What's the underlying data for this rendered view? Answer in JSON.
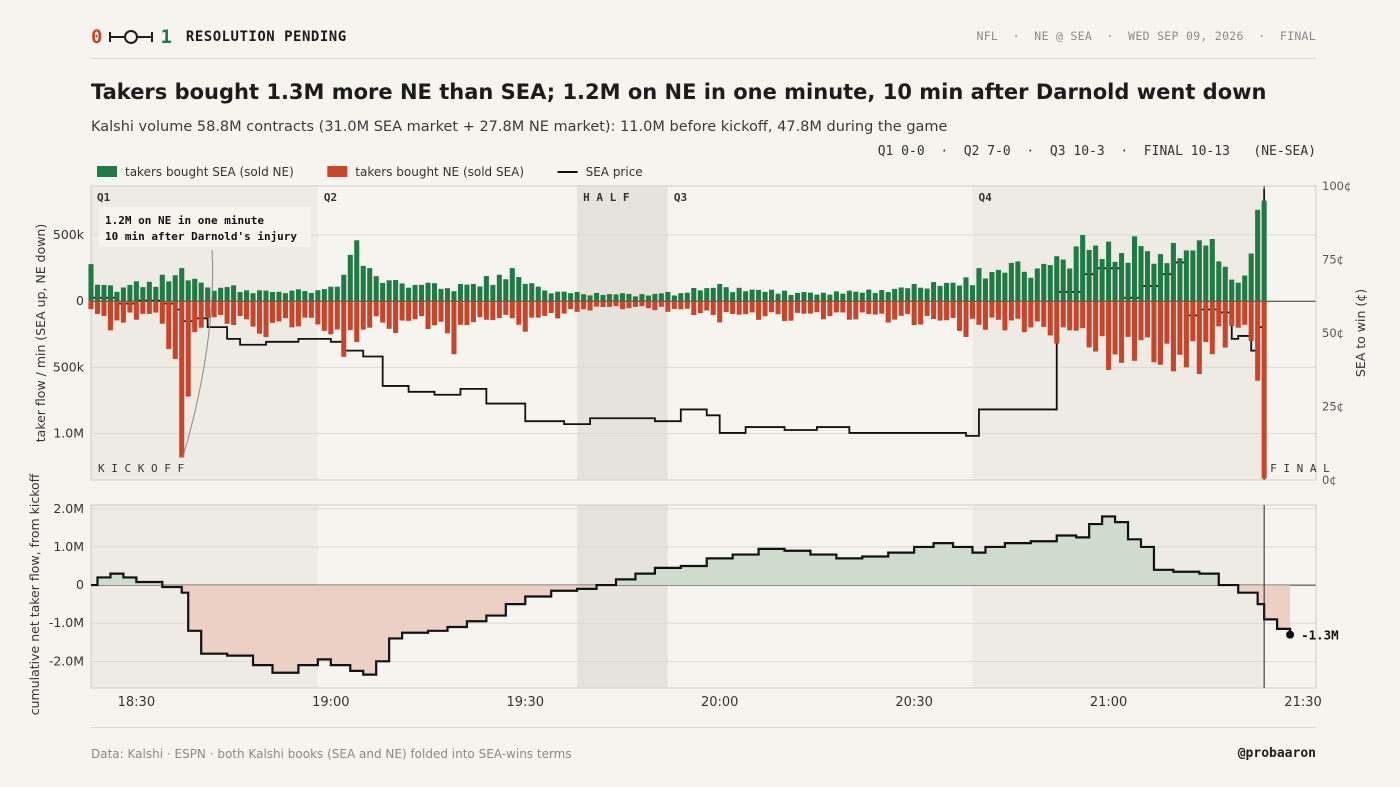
{
  "header": {
    "brand_zero": "0",
    "brand_one": "1",
    "status": "RESOLUTION PENDING",
    "meta": "NFL  ·  NE @ SEA  ·  WED SEP 09, 2026  ·  FINAL"
  },
  "title": "Takers bought 1.3M more NE than SEA; 1.2M on NE in one minute, 10 min after Darnold went down",
  "subtitle": "Kalshi volume 58.8M contracts (31.0M SEA market  +  27.8M NE market): 11.0M before kickoff, 47.8M during the game",
  "score_line": "Q1 0-0  ·  Q2 7-0  ·  Q3 10-3  ·  FINAL 10-13   (NE-SEA)",
  "colors": {
    "sea": "#1f7a45",
    "ne": "#c8452b",
    "price": "#111111",
    "pos_fill": "#cfdccd",
    "neg_fill": "#ecd0c6",
    "quarter_shade": "#eeebe4",
    "half_shade": "#e6e3dc"
  },
  "footer": {
    "source": "Data: Kalshi  ·  ESPN  ·  both Kalshi books (SEA and NE) folded into SEA-wins terms",
    "handle": "@probaaron"
  },
  "chart_data": [
    {
      "type": "bar",
      "legend": [
        "takers bought SEA (sold NE)",
        "takers bought NE (sold SEA)",
        "SEA price"
      ],
      "ylabel": "taker flow / min  (SEA up, NE down)",
      "y2label": "SEA to win (¢)",
      "y_ticks": [
        "500k",
        "0",
        "500k",
        "1.0M"
      ],
      "y_tick_values": [
        500000,
        0,
        -500000,
        -1000000
      ],
      "ylim": [
        -1350000,
        870000
      ],
      "y2_ticks": [
        "100¢",
        "75¢",
        "50¢",
        "25¢",
        "0¢"
      ],
      "y2_tick_values": [
        100,
        75,
        50,
        25,
        0
      ],
      "y2lim": [
        0,
        100
      ],
      "x_range": [
        "18:23",
        "21:32"
      ],
      "periods": [
        {
          "label": "Q1",
          "start": "18:23",
          "end": "18:58"
        },
        {
          "label": "Q2",
          "start": "18:58",
          "end": "19:38"
        },
        {
          "label": "H A L F",
          "start": "19:38",
          "end": "19:52"
        },
        {
          "label": "Q3",
          "start": "19:52",
          "end": "20:39"
        },
        {
          "label": "Q4",
          "start": "20:39",
          "end": "21:24"
        }
      ],
      "markers": [
        {
          "label": "K I C K O F F",
          "time": "18:23"
        },
        {
          "label": "F I N A L",
          "time": "21:24"
        }
      ],
      "annotation": {
        "lines": [
          "1.2M on NE in one minute",
          "10 min after Darnold's injury"
        ],
        "target_time": "18:37",
        "target_value": -1180000
      },
      "sea_flow": {
        "18:23": 280000,
        "18:26": 120000,
        "18:30": 150000,
        "18:34": 200000,
        "18:37": 250000,
        "18:40": 140000,
        "18:45": 120000,
        "18:50": 80000,
        "18:55": 90000,
        "19:00": 110000,
        "19:03": 350000,
        "19:04": 460000,
        "19:06": 250000,
        "19:10": 160000,
        "19:15": 140000,
        "19:20": 130000,
        "19:24": 190000,
        "19:28": 250000,
        "19:32": 110000,
        "19:38": 70000,
        "19:45": 60000,
        "19:52": 70000,
        "20:00": 130000,
        "20:10": 80000,
        "20:20": 80000,
        "20:30": 130000,
        "20:38": 180000,
        "20:40": 250000,
        "20:46": 300000,
        "20:52": 340000,
        "20:56": 500000,
        "20:58": 420000,
        "21:00": 450000,
        "21:04": 490000,
        "21:10": 440000,
        "21:14": 460000,
        "21:16": 470000,
        "21:18": 260000,
        "21:20": 140000,
        "21:22": 360000,
        "21:23": 690000,
        "21:24": 760000,
        "21:25": 60000,
        "21:32": 40000
      },
      "ne_flow": {
        "18:23": -60000,
        "18:26": -220000,
        "18:30": -140000,
        "18:34": -170000,
        "18:37": -1180000,
        "18:38": -720000,
        "18:40": -200000,
        "18:45": -180000,
        "18:50": -270000,
        "18:55": -190000,
        "19:00": -250000,
        "19:02": -420000,
        "19:06": -200000,
        "19:10": -240000,
        "19:15": -210000,
        "19:19": -400000,
        "19:24": -140000,
        "19:30": -230000,
        "19:38": -80000,
        "19:45": -60000,
        "19:52": -80000,
        "20:00": -160000,
        "20:10": -150000,
        "20:20": -140000,
        "20:30": -180000,
        "20:38": -270000,
        "20:44": -220000,
        "20:52": -320000,
        "20:58": -380000,
        "21:00": -520000,
        "21:04": -450000,
        "21:08": -480000,
        "21:10": -530000,
        "21:14": -550000,
        "21:16": -400000,
        "21:18": -350000,
        "21:20": -200000,
        "21:22": -300000,
        "21:23": -600000,
        "21:24": -1340000,
        "21:25": -170000,
        "21:32": -70000
      },
      "sea_price": [
        [
          "18:23",
          62
        ],
        [
          "18:27",
          60
        ],
        [
          "18:30",
          61
        ],
        [
          "18:34",
          60
        ],
        [
          "18:36",
          58
        ],
        [
          "18:37",
          54
        ],
        [
          "18:39",
          55
        ],
        [
          "18:41",
          52
        ],
        [
          "18:44",
          48
        ],
        [
          "18:46",
          46
        ],
        [
          "18:50",
          47
        ],
        [
          "18:55",
          48
        ],
        [
          "19:00",
          47
        ],
        [
          "19:02",
          44
        ],
        [
          "19:05",
          42
        ],
        [
          "19:08",
          32
        ],
        [
          "19:12",
          30
        ],
        [
          "19:16",
          29
        ],
        [
          "19:20",
          31
        ],
        [
          "19:24",
          26
        ],
        [
          "19:30",
          20
        ],
        [
          "19:36",
          19
        ],
        [
          "19:40",
          21
        ],
        [
          "19:45",
          21
        ],
        [
          "19:50",
          20
        ],
        [
          "19:54",
          24
        ],
        [
          "19:58",
          22
        ],
        [
          "20:00",
          16
        ],
        [
          "20:04",
          18
        ],
        [
          "20:10",
          17
        ],
        [
          "20:15",
          18
        ],
        [
          "20:20",
          16
        ],
        [
          "20:30",
          16
        ],
        [
          "20:38",
          15
        ],
        [
          "20:40",
          16
        ],
        [
          "20:40",
          24
        ],
        [
          "20:47",
          24
        ],
        [
          "20:52",
          24
        ],
        [
          "20:52",
          64
        ],
        [
          "20:56",
          70
        ],
        [
          "20:58",
          72
        ],
        [
          "21:00",
          72
        ],
        [
          "21:02",
          62
        ],
        [
          "21:05",
          66
        ],
        [
          "21:08",
          70
        ],
        [
          "21:10",
          74
        ],
        [
          "21:12",
          56
        ],
        [
          "21:14",
          58
        ],
        [
          "21:17",
          57
        ],
        [
          "21:19",
          48
        ],
        [
          "21:20",
          49
        ],
        [
          "21:22",
          44
        ],
        [
          "21:23",
          52
        ],
        [
          "21:24",
          99
        ]
      ]
    },
    {
      "type": "area",
      "ylabel": "cumulative net taker flow, from kickoff",
      "y_ticks": [
        "2.0M",
        "1.0M",
        "0",
        "-1.0M",
        "-2.0M"
      ],
      "y_tick_values": [
        2000000,
        1000000,
        0,
        -1000000,
        -2000000
      ],
      "ylim": [
        -2700000,
        2100000
      ],
      "x_ticks": [
        "18:30",
        "19:00",
        "19:30",
        "20:00",
        "20:30",
        "21:00",
        "21:30"
      ],
      "x_range": [
        "18:23",
        "21:32"
      ],
      "end_label": "-1.3M",
      "series": [
        [
          "18:23",
          0
        ],
        [
          "18:24",
          200000
        ],
        [
          "18:26",
          300000
        ],
        [
          "18:28",
          200000
        ],
        [
          "18:30",
          80000
        ],
        [
          "18:34",
          -50000
        ],
        [
          "18:37",
          -200000
        ],
        [
          "18:38",
          -1200000
        ],
        [
          "18:40",
          -1800000
        ],
        [
          "18:44",
          -1850000
        ],
        [
          "18:48",
          -2100000
        ],
        [
          "18:51",
          -2300000
        ],
        [
          "18:55",
          -2100000
        ],
        [
          "18:58",
          -1950000
        ],
        [
          "19:00",
          -2100000
        ],
        [
          "19:03",
          -2250000
        ],
        [
          "19:05",
          -2350000
        ],
        [
          "19:07",
          -2000000
        ],
        [
          "19:09",
          -1400000
        ],
        [
          "19:11",
          -1250000
        ],
        [
          "19:15",
          -1200000
        ],
        [
          "19:18",
          -1100000
        ],
        [
          "19:21",
          -950000
        ],
        [
          "19:24",
          -800000
        ],
        [
          "19:27",
          -500000
        ],
        [
          "19:30",
          -300000
        ],
        [
          "19:34",
          -150000
        ],
        [
          "19:38",
          -100000
        ],
        [
          "19:41",
          0
        ],
        [
          "19:44",
          150000
        ],
        [
          "19:47",
          300000
        ],
        [
          "19:50",
          450000
        ],
        [
          "19:54",
          500000
        ],
        [
          "19:58",
          700000
        ],
        [
          "20:02",
          800000
        ],
        [
          "20:06",
          950000
        ],
        [
          "20:10",
          900000
        ],
        [
          "20:14",
          800000
        ],
        [
          "20:18",
          700000
        ],
        [
          "20:22",
          750000
        ],
        [
          "20:26",
          850000
        ],
        [
          "20:30",
          1000000
        ],
        [
          "20:33",
          1100000
        ],
        [
          "20:36",
          1000000
        ],
        [
          "20:39",
          850000
        ],
        [
          "20:41",
          1000000
        ],
        [
          "20:44",
          1100000
        ],
        [
          "20:48",
          1150000
        ],
        [
          "20:52",
          1300000
        ],
        [
          "20:55",
          1250000
        ],
        [
          "20:57",
          1600000
        ],
        [
          "20:59",
          1800000
        ],
        [
          "21:01",
          1650000
        ],
        [
          "21:03",
          1200000
        ],
        [
          "21:05",
          1000000
        ],
        [
          "21:07",
          400000
        ],
        [
          "21:10",
          350000
        ],
        [
          "21:14",
          300000
        ],
        [
          "21:17",
          0
        ],
        [
          "21:20",
          -200000
        ],
        [
          "21:23",
          -500000
        ],
        [
          "21:24",
          -900000
        ],
        [
          "21:26",
          -1150000
        ],
        [
          "21:28",
          -1300000
        ]
      ]
    }
  ]
}
